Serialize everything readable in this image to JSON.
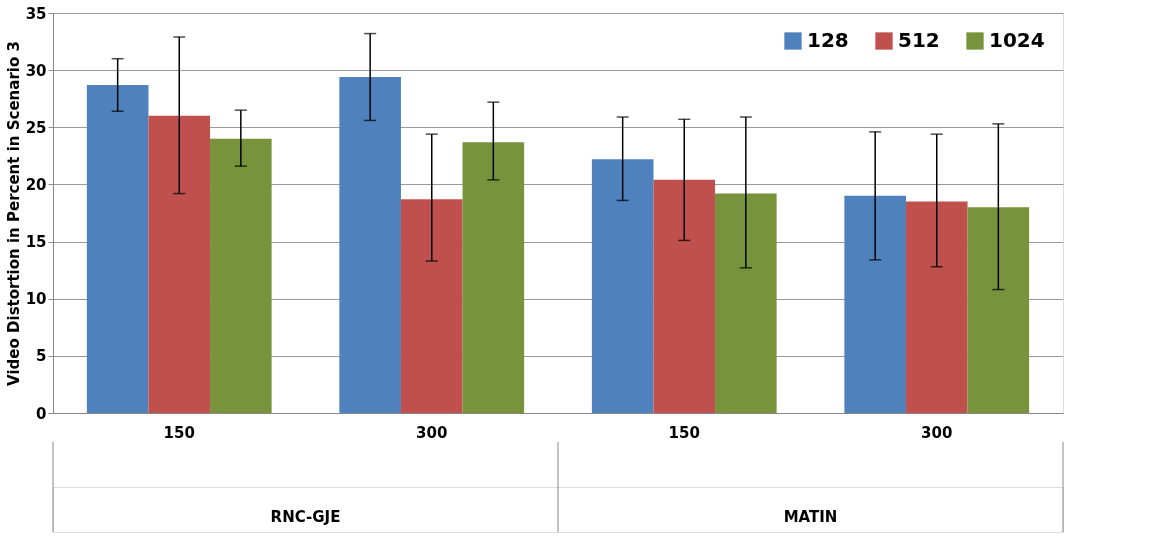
{
  "chart_data": {
    "type": "bar",
    "ylabel": "Video Distortion in Percent in Scenario 3",
    "categories": [
      "150",
      "300",
      "150",
      "300"
    ],
    "annotations": [
      "RNC-GJE",
      "MATIN"
    ],
    "series": [
      {
        "name": "128",
        "color": "#4f81bd",
        "values": [
          28.7,
          29.4,
          22.2,
          19.0
        ],
        "errors": [
          [
            26.4,
            31.0
          ],
          [
            25.6,
            33.2
          ],
          [
            18.6,
            25.9
          ],
          [
            13.4,
            24.6
          ]
        ]
      },
      {
        "name": "512",
        "color": "#c0504d",
        "values": [
          26.0,
          18.7,
          20.4,
          18.5
        ],
        "errors": [
          [
            19.2,
            32.9
          ],
          [
            13.3,
            24.4
          ],
          [
            15.1,
            25.7
          ],
          [
            12.8,
            24.4
          ]
        ]
      },
      {
        "name": "1024",
        "color": "#77933c",
        "values": [
          24.0,
          23.7,
          19.2,
          18.0
        ],
        "errors": [
          [
            21.6,
            26.5
          ],
          [
            20.4,
            27.2
          ],
          [
            12.7,
            25.9
          ],
          [
            10.8,
            25.3
          ]
        ]
      }
    ],
    "ylim": [
      0,
      35
    ],
    "yticks": [
      0,
      5,
      10,
      15,
      20,
      25,
      30,
      35
    ],
    "grid": "y",
    "legend": "top right"
  }
}
